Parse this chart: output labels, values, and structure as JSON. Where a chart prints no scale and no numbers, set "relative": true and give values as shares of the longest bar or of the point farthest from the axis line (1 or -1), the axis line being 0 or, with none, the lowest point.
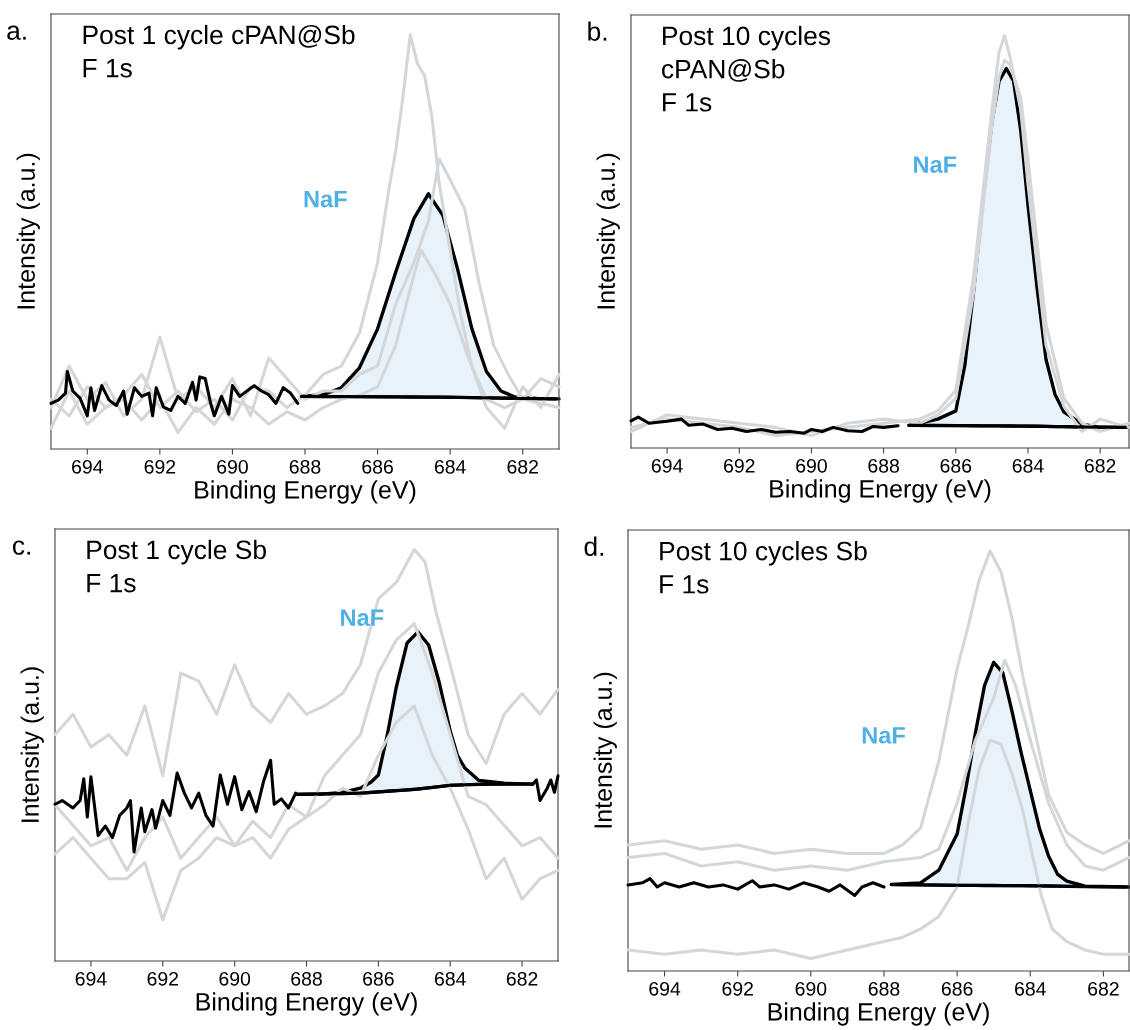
{
  "chart_data": [
    {
      "type": "line",
      "title": "Post 1 cycle cPAN@Sb\nF 1s",
      "xlabel": "Binding Energy (eV)",
      "ylabel": "Intensity (a.u.)",
      "xlim": [
        695,
        681
      ],
      "xticks": [
        694,
        692,
        690,
        688,
        686,
        684,
        682
      ],
      "relative": true,
      "annotations": [
        "a.",
        "NaF"
      ],
      "series": [
        {
          "color": "#d4d7da",
          "x": [
            695,
            694.5,
            694,
            693.5,
            693,
            692.5,
            692,
            691.5,
            691,
            690.5,
            690,
            689.5,
            689,
            688.5,
            688,
            687.5,
            687,
            686.5,
            686,
            685.7,
            685.5,
            685.3,
            685.1,
            684.9,
            684.7,
            684.5,
            684.3,
            684,
            683.7,
            683.4,
            683,
            682.5,
            682,
            681.5,
            681
          ],
          "values": [
            0.12,
            0.08,
            0.15,
            0.1,
            0.13,
            0.18,
            0.1,
            0.14,
            0.09,
            0.12,
            0.07,
            0.15,
            0.14,
            0.1,
            0.13,
            0.18,
            0.2,
            0.28,
            0.45,
            0.62,
            0.72,
            0.85,
            1.0,
            0.93,
            0.9,
            0.8,
            0.64,
            0.48,
            0.32,
            0.2,
            0.1,
            0.05,
            0.15,
            0.1,
            0.18
          ]
        },
        {
          "color": "#d4d7da",
          "x": [
            695,
            694.5,
            694,
            693.5,
            693,
            692.5,
            692,
            691.5,
            691,
            690.5,
            690,
            689.5,
            689,
            688.5,
            688,
            687.5,
            687,
            686.5,
            686,
            685.5,
            685,
            684.6,
            684.3,
            684,
            683.6,
            683.2,
            682.8,
            682.4,
            682,
            681.5,
            681
          ],
          "values": [
            0.1,
            0.2,
            0.12,
            0.16,
            0.08,
            0.12,
            0.27,
            0.12,
            0.15,
            0.1,
            0.17,
            0.08,
            0.22,
            0.17,
            0.12,
            0.14,
            0.14,
            0.18,
            0.2,
            0.35,
            0.45,
            0.55,
            0.7,
            0.65,
            0.58,
            0.4,
            0.25,
            0.18,
            0.12,
            0.17,
            0.15
          ]
        },
        {
          "color": "#d4d7da",
          "x": [
            695,
            694.5,
            694,
            693.5,
            693,
            692.5,
            692,
            691.5,
            691,
            690.5,
            690,
            689.5,
            689,
            688.5,
            688,
            687.5,
            687,
            686.5,
            686,
            685.5,
            685,
            684.8,
            684.4,
            684,
            683.5,
            683,
            682.5,
            682,
            681
          ],
          "values": [
            0.05,
            0.14,
            0.06,
            0.1,
            0.12,
            0.07,
            0.12,
            0.04,
            0.1,
            0.06,
            0.12,
            0.1,
            0.06,
            0.09,
            0.07,
            0.1,
            0.12,
            0.13,
            0.15,
            0.25,
            0.42,
            0.48,
            0.42,
            0.35,
            0.22,
            0.12,
            0.1,
            0.12,
            0.1
          ]
        },
        {
          "color": "#000000",
          "x": [
            688.1,
            686,
            684,
            682,
            681.1
          ],
          "values": [
            0.127,
            0.126,
            0.125,
            0.122,
            0.121
          ]
        },
        {
          "type": "area",
          "color": "#e8f2fa",
          "x": [
            688.1,
            687.5,
            687,
            686.5,
            686,
            685.5,
            685,
            684.6,
            684.2,
            683.8,
            683.4,
            683,
            682.6,
            682.2,
            681.6,
            681
          ],
          "values": [
            0.127,
            0.131,
            0.148,
            0.196,
            0.29,
            0.427,
            0.556,
            0.616,
            0.564,
            0.436,
            0.29,
            0.187,
            0.14,
            0.125,
            0.122,
            0.121
          ]
        },
        {
          "color": "#000000",
          "x": [
            695,
            694.8,
            694.6,
            694.55,
            694.4,
            694.2,
            694,
            693.9,
            693.8,
            693.6,
            693.4,
            693.2,
            693,
            692.9,
            692.7,
            692.5,
            692.3,
            692.2,
            692.1,
            691.9,
            691.7,
            691.5,
            691.3,
            691.1,
            691,
            690.9,
            690.75,
            690.6,
            690.5,
            690.3,
            690.1,
            690,
            689.8,
            689.6,
            689.4,
            689.2,
            689,
            688.8,
            688.6,
            688.4,
            688.2
          ],
          "values": [
            0.11,
            0.118,
            0.135,
            0.187,
            0.14,
            0.123,
            0.08,
            0.148,
            0.093,
            0.153,
            0.118,
            0.105,
            0.14,
            0.084,
            0.148,
            0.127,
            0.135,
            0.08,
            0.148,
            0.101,
            0.093,
            0.127,
            0.11,
            0.161,
            0.118,
            0.174,
            0.17,
            0.11,
            0.08,
            0.127,
            0.084,
            0.153,
            0.127,
            0.14,
            0.153,
            0.14,
            0.131,
            0.11,
            0.148,
            0.135,
            0.11
          ]
        }
      ]
    },
    {
      "type": "line",
      "title": "Post 10 cycles\ncPAN@Sb\nF 1s",
      "xlabel": "Binding Energy (eV)",
      "ylabel": "Intensity (a.u.)",
      "xlim": [
        695,
        681.2
      ],
      "xticks": [
        694,
        692,
        690,
        688,
        686,
        684,
        682
      ],
      "relative": true,
      "annotations": [
        "b.",
        "NaF"
      ],
      "series": [
        {
          "color": "#d4d7da",
          "x": [
            695,
            694,
            693,
            692,
            691,
            690,
            689,
            688,
            687,
            686.5,
            686,
            685.5,
            685,
            684.8,
            684.65,
            684.5,
            684.2,
            684,
            683.5,
            683,
            682.5,
            682,
            681.2
          ],
          "values": [
            0.05,
            0.07,
            0.06,
            0.05,
            0.03,
            0.04,
            0.05,
            0.06,
            0.07,
            0.09,
            0.14,
            0.42,
            0.82,
            0.96,
            1.0,
            0.95,
            0.82,
            0.64,
            0.25,
            0.1,
            0.04,
            0.07,
            0.05
          ]
        },
        {
          "color": "#d4d7da",
          "x": [
            695,
            694,
            693,
            692,
            691,
            690,
            689,
            688,
            687,
            686.5,
            686,
            685.5,
            685,
            684.8,
            684.65,
            684.5,
            684.2,
            684,
            683.5,
            683,
            682.5,
            682,
            681.2
          ],
          "values": [
            0.04,
            0.08,
            0.07,
            0.06,
            0.05,
            0.03,
            0.06,
            0.07,
            0.06,
            0.08,
            0.12,
            0.38,
            0.78,
            0.9,
            0.94,
            0.93,
            0.85,
            0.7,
            0.3,
            0.12,
            0.06,
            0.04,
            0.06
          ]
        },
        {
          "color": "#000000",
          "x": [
            687.3,
            685.5,
            684,
            682.5,
            681.3
          ],
          "values": [
            0.055,
            0.054,
            0.053,
            0.051,
            0.05
          ]
        },
        {
          "type": "area",
          "color": "#e8f2fa",
          "x": [
            687.3,
            686.5,
            686,
            685.75,
            685.5,
            685.25,
            685,
            684.8,
            684.6,
            684.4,
            684.2,
            684,
            683.75,
            683.5,
            683.25,
            683,
            682.5,
            682,
            681.2
          ],
          "values": [
            0.055,
            0.07,
            0.09,
            0.2,
            0.385,
            0.6,
            0.79,
            0.89,
            0.92,
            0.89,
            0.77,
            0.59,
            0.39,
            0.215,
            0.13,
            0.087,
            0.058,
            0.05,
            0.05
          ]
        },
        {
          "color": "#000000",
          "x": [
            695,
            694.8,
            694.5,
            694,
            693.6,
            693.4,
            693,
            692.6,
            692.2,
            691.8,
            691.4,
            691,
            690.6,
            690.2,
            690,
            689.7,
            689.4,
            689,
            688.6,
            688.3,
            688,
            687.6
          ],
          "values": [
            0.066,
            0.075,
            0.06,
            0.065,
            0.07,
            0.055,
            0.058,
            0.045,
            0.048,
            0.04,
            0.045,
            0.038,
            0.04,
            0.036,
            0.045,
            0.04,
            0.05,
            0.042,
            0.04,
            0.052,
            0.05,
            0.054
          ]
        }
      ]
    },
    {
      "type": "line",
      "title": "Post 1 cycle Sb\nF 1s",
      "xlabel": "Binding Energy (eV)",
      "ylabel": "Intensity (a.u.)",
      "xlim": [
        695,
        681
      ],
      "xticks": [
        694,
        692,
        690,
        688,
        686,
        684,
        682
      ],
      "relative": true,
      "annotations": [
        "c.",
        "NaF"
      ],
      "series": [
        {
          "color": "#d4d7da",
          "x": [
            695,
            694.5,
            694,
            693.5,
            693,
            692.5,
            692,
            691.5,
            691,
            690.5,
            690,
            689.5,
            689,
            688.5,
            688,
            687.5,
            687,
            686.5,
            686,
            685.5,
            685,
            684.7,
            684.4,
            684,
            683.5,
            683,
            682.5,
            682,
            681.5,
            681
          ],
          "values": [
            0.55,
            0.6,
            0.52,
            0.55,
            0.5,
            0.62,
            0.45,
            0.7,
            0.68,
            0.6,
            0.72,
            0.62,
            0.58,
            0.65,
            0.6,
            0.62,
            0.65,
            0.72,
            0.88,
            0.92,
            1.0,
            0.97,
            0.85,
            0.72,
            0.55,
            0.48,
            0.6,
            0.65,
            0.6,
            0.66
          ]
        },
        {
          "color": "#d4d7da",
          "x": [
            695,
            694.5,
            694,
            693.5,
            693,
            692.5,
            692,
            691.5,
            691,
            690.5,
            690,
            689.5,
            689,
            688.5,
            688,
            687.5,
            687,
            686.5,
            686,
            685.5,
            685,
            684.5,
            684,
            683.5,
            683,
            682.5,
            682,
            681.5,
            681
          ],
          "values": [
            0.38,
            0.33,
            0.28,
            0.3,
            0.22,
            0.3,
            0.35,
            0.25,
            0.3,
            0.35,
            0.28,
            0.34,
            0.3,
            0.38,
            0.35,
            0.45,
            0.5,
            0.55,
            0.7,
            0.78,
            0.82,
            0.7,
            0.55,
            0.4,
            0.38,
            0.33,
            0.28,
            0.3,
            0.25
          ]
        },
        {
          "color": "#d4d7da",
          "x": [
            695,
            694.5,
            694,
            693.5,
            693,
            692.5,
            692,
            691.5,
            691,
            690.5,
            690,
            689.5,
            689,
            688.5,
            688,
            687.5,
            687,
            686.5,
            686,
            685.5,
            685,
            684.5,
            684,
            683.5,
            683,
            682.5,
            682,
            681.5,
            681
          ],
          "values": [
            0.26,
            0.3,
            0.25,
            0.2,
            0.2,
            0.24,
            0.1,
            0.22,
            0.25,
            0.3,
            0.28,
            0.3,
            0.25,
            0.32,
            0.35,
            0.38,
            0.42,
            0.4,
            0.5,
            0.58,
            0.62,
            0.5,
            0.42,
            0.32,
            0.2,
            0.25,
            0.15,
            0.2,
            0.22
          ]
        },
        {
          "color": "#000000",
          "x": [
            688.3,
            686.5,
            685,
            684,
            683,
            681.7
          ],
          "values": [
            0.405,
            0.408,
            0.417,
            0.427,
            0.43,
            0.43
          ]
        },
        {
          "type": "area",
          "color": "#e8f2fa",
          "x": [
            688.3,
            687.5,
            687,
            686.5,
            686.2,
            686,
            685.75,
            685.5,
            685.2,
            684.9,
            684.6,
            684.3,
            684,
            683.8,
            683.6,
            683.2,
            682.5,
            681.7
          ],
          "values": [
            0.405,
            0.406,
            0.41,
            0.42,
            0.435,
            0.452,
            0.55,
            0.666,
            0.773,
            0.8,
            0.768,
            0.675,
            0.559,
            0.5,
            0.47,
            0.439,
            0.432,
            0.43
          ]
        },
        {
          "color": "#000000",
          "x": [
            695,
            694.8,
            694.5,
            694.3,
            694.2,
            694.1,
            694,
            693.8,
            693.6,
            693.4,
            693.2,
            693,
            692.9,
            692.8,
            692.6,
            692.5,
            692.3,
            692.2,
            692,
            691.8,
            691.6,
            691.4,
            691.2,
            691,
            690.8,
            690.6,
            690.4,
            690.2,
            690,
            689.8,
            689.6,
            689.4,
            689.2,
            689,
            688.9,
            688.7,
            688.5,
            688.3
          ],
          "values": [
            0.381,
            0.39,
            0.372,
            0.39,
            0.443,
            0.35,
            0.448,
            0.305,
            0.328,
            0.3,
            0.354,
            0.372,
            0.39,
            0.265,
            0.372,
            0.314,
            0.368,
            0.323,
            0.39,
            0.354,
            0.457,
            0.408,
            0.372,
            0.408,
            0.354,
            0.328,
            0.452,
            0.381,
            0.448,
            0.368,
            0.412,
            0.363,
            0.435,
            0.488,
            0.381,
            0.394,
            0.372,
            0.408
          ]
        },
        {
          "color": "#000000",
          "x": [
            681.7,
            681.6,
            681.5,
            681.3,
            681.2,
            681.1,
            681
          ],
          "values": [
            0.43,
            0.44,
            0.39,
            0.42,
            0.44,
            0.41,
            0.45
          ]
        }
      ]
    },
    {
      "type": "line",
      "title": "Post 10 cycles Sb\nF 1s",
      "xlabel": "Binding Energy (eV)",
      "ylabel": "Intensity (a.u.)",
      "xlim": [
        695,
        681.3
      ],
      "xticks": [
        694,
        692,
        690,
        688,
        686,
        684,
        682
      ],
      "relative": true,
      "annotations": [
        "d.",
        "NaF"
      ],
      "series": [
        {
          "color": "#d4d7da",
          "x": [
            695,
            694,
            693,
            692,
            691,
            690,
            689,
            688,
            687.5,
            687,
            686.5,
            686,
            685.7,
            685.4,
            685.1,
            684.8,
            684.5,
            684.2,
            684,
            683.5,
            683,
            682.5,
            682,
            681.3
          ],
          "values": [
            0.3,
            0.31,
            0.29,
            0.3,
            0.28,
            0.29,
            0.28,
            0.28,
            0.3,
            0.34,
            0.5,
            0.72,
            0.82,
            0.93,
            1.0,
            0.95,
            0.84,
            0.7,
            0.62,
            0.42,
            0.33,
            0.3,
            0.28,
            0.31
          ]
        },
        {
          "color": "#d4d7da",
          "x": [
            695,
            694,
            693,
            692,
            691,
            690,
            689,
            688,
            687,
            686.5,
            686,
            685.5,
            685,
            684.7,
            684.4,
            684,
            683.5,
            683,
            682.5,
            682,
            681.3
          ],
          "values": [
            0.27,
            0.28,
            0.25,
            0.26,
            0.24,
            0.25,
            0.24,
            0.26,
            0.27,
            0.29,
            0.4,
            0.55,
            0.65,
            0.74,
            0.68,
            0.55,
            0.4,
            0.3,
            0.25,
            0.24,
            0.27
          ]
        },
        {
          "color": "#d4d7da",
          "x": [
            695,
            694,
            693,
            692,
            691,
            690,
            689,
            688,
            687.5,
            687,
            686.5,
            686,
            685.7,
            685.4,
            685.1,
            684.8,
            684.5,
            684.2,
            684,
            683.7,
            683.4,
            683,
            682.5,
            682,
            681.3
          ],
          "values": [
            0.05,
            0.04,
            0.05,
            0.04,
            0.05,
            0.03,
            0.05,
            0.07,
            0.08,
            0.1,
            0.13,
            0.2,
            0.35,
            0.48,
            0.55,
            0.54,
            0.47,
            0.38,
            0.3,
            0.18,
            0.1,
            0.07,
            0.05,
            0.04,
            0.04
          ]
        },
        {
          "color": "#000000",
          "x": [
            687.8,
            686,
            684,
            682.5,
            681.4
          ],
          "values": [
            0.206,
            0.204,
            0.203,
            0.201,
            0.2
          ]
        },
        {
          "type": "area",
          "color": "#e8f2fa",
          "x": [
            687.8,
            687,
            686.5,
            686,
            685.75,
            685.5,
            685.25,
            685,
            684.75,
            684.5,
            684.25,
            684,
            683.75,
            683.5,
            683.25,
            683,
            682.5,
            681.3
          ],
          "values": [
            0.206,
            0.21,
            0.24,
            0.326,
            0.44,
            0.567,
            0.68,
            0.735,
            0.71,
            0.619,
            0.52,
            0.43,
            0.34,
            0.274,
            0.23,
            0.214,
            0.202,
            0.2
          ]
        },
        {
          "color": "#000000",
          "x": [
            695,
            694.6,
            694.4,
            694.2,
            694,
            693.6,
            693.2,
            692.8,
            692.4,
            692,
            691.6,
            691.4,
            691,
            690.6,
            690.2,
            689.8,
            689.5,
            689.2,
            688.8,
            688.6,
            688.3,
            688
          ],
          "values": [
            0.205,
            0.21,
            0.22,
            0.2,
            0.21,
            0.2,
            0.21,
            0.2,
            0.205,
            0.195,
            0.215,
            0.2,
            0.205,
            0.195,
            0.21,
            0.2,
            0.19,
            0.205,
            0.18,
            0.2,
            0.21,
            0.2
          ]
        }
      ]
    }
  ]
}
